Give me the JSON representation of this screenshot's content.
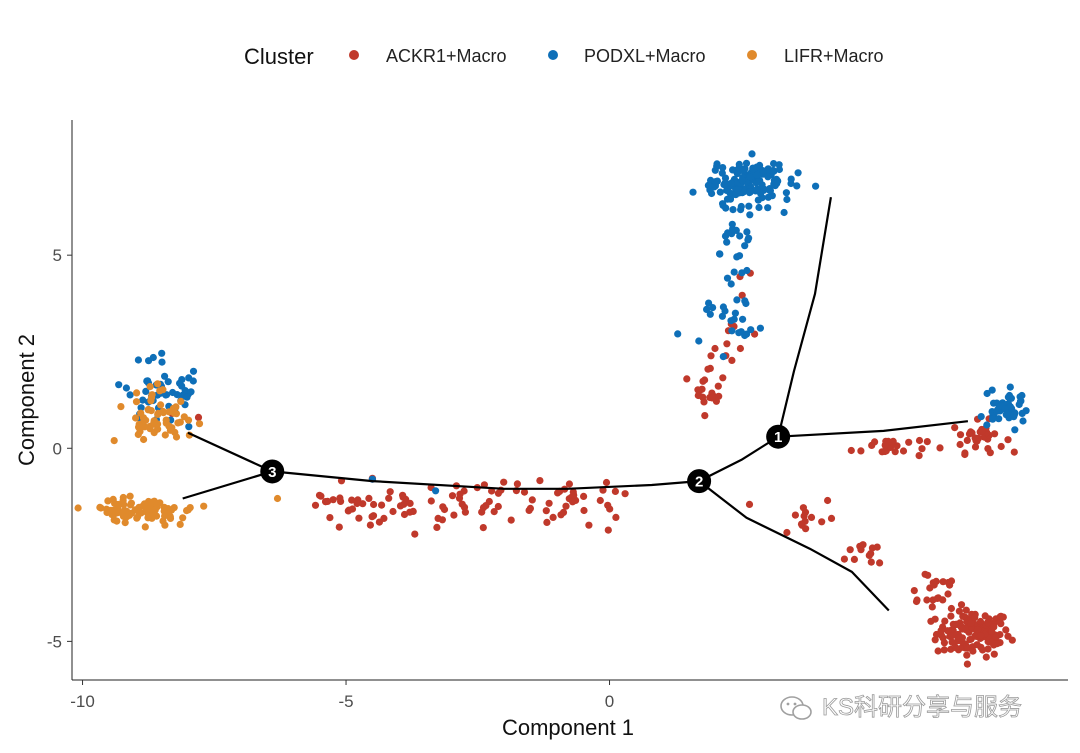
{
  "chart_data": {
    "type": "scatter",
    "title": "",
    "xlabel": "Component 1",
    "ylabel": "Component 2",
    "xlim": [
      -10.2,
      8.7
    ],
    "ylim": [
      -6.0,
      8.5
    ],
    "xticks": [
      -10,
      -5,
      0
    ],
    "yticks": [
      -5,
      0,
      5
    ],
    "legend": {
      "title": "Cluster",
      "placement": "top",
      "entries": [
        {
          "name": "ACKR1+Macro",
          "color": "#C0392B"
        },
        {
          "name": "PODXL+Macro",
          "color": "#0E6FB8"
        },
        {
          "name": "LIFR+Macro",
          "color": "#E08A2C"
        }
      ]
    },
    "series": [
      {
        "name": "ACKR1+Macro",
        "color": "#C0392B",
        "clusters": [
          {
            "cx": 6.9,
            "cy": -4.8,
            "sx": 0.35,
            "sy": 0.3,
            "n": 130
          },
          {
            "cx": 6.1,
            "cy": -3.6,
            "sx": 0.3,
            "sy": 0.3,
            "n": 20
          },
          {
            "cx": 5.0,
            "cy": -2.7,
            "sx": 0.25,
            "sy": 0.2,
            "n": 12
          },
          {
            "cx": 3.7,
            "cy": -1.8,
            "sx": 0.3,
            "sy": 0.3,
            "n": 14
          },
          {
            "cx": 7.0,
            "cy": 0.3,
            "sx": 0.25,
            "sy": 0.2,
            "n": 30
          },
          {
            "cx": 5.3,
            "cy": 0.05,
            "sx": 0.35,
            "sy": 0.15,
            "n": 25
          },
          {
            "cx": 1.9,
            "cy": 1.7,
            "sx": 0.15,
            "sy": 0.4,
            "n": 22
          },
          {
            "cx": 2.4,
            "cy": 2.7,
            "sx": 0.2,
            "sy": 0.3,
            "n": 8
          },
          {
            "cx": 2.6,
            "cy": 4.3,
            "sx": 0.08,
            "sy": 0.1,
            "n": 3
          }
        ],
        "trail": {
          "x0": -5.6,
          "x1": 0.3,
          "y": -1.5,
          "sy": 0.3,
          "n": 110
        },
        "points": [
          [
            -7.8,
            0.8
          ],
          [
            -8.3,
            0.9
          ]
        ]
      },
      {
        "name": "PODXL+Macro",
        "color": "#0E6FB8",
        "clusters": [
          {
            "cx": 2.6,
            "cy": 6.9,
            "sx": 0.4,
            "sy": 0.3,
            "n": 150
          },
          {
            "cx": 2.4,
            "cy": 5.4,
            "sx": 0.15,
            "sy": 0.6,
            "n": 22
          },
          {
            "cx": 2.3,
            "cy": 3.3,
            "sx": 0.25,
            "sy": 0.4,
            "n": 26
          },
          {
            "cx": 7.5,
            "cy": 1.0,
            "sx": 0.2,
            "sy": 0.25,
            "n": 50
          },
          {
            "cx": -8.5,
            "cy": 1.5,
            "sx": 0.45,
            "sy": 0.45,
            "n": 50
          }
        ],
        "trail": null,
        "points": [
          [
            -4.5,
            -0.8
          ],
          [
            -3.3,
            -1.1
          ]
        ]
      },
      {
        "name": "LIFR+Macro",
        "color": "#E08A2C",
        "clusters": [
          {
            "cx": -8.8,
            "cy": -1.6,
            "sx": 0.45,
            "sy": 0.15,
            "n": 85
          },
          {
            "cx": -8.6,
            "cy": 0.6,
            "sx": 0.35,
            "sy": 0.3,
            "n": 50
          },
          {
            "cx": -8.7,
            "cy": 1.3,
            "sx": 0.15,
            "sy": 0.2,
            "n": 8
          }
        ],
        "trail": null,
        "points": [
          [
            -9.4,
            0.2
          ],
          [
            -6.3,
            -1.3
          ],
          [
            -7.7,
            -1.5
          ],
          [
            -8.1,
            -1.8
          ]
        ]
      }
    ],
    "trajectory": {
      "segments": [
        [
          [
            -8.0,
            0.4
          ],
          [
            -6.4,
            -0.6
          ]
        ],
        [
          [
            -8.1,
            -1.3
          ],
          [
            -6.4,
            -0.6
          ]
        ],
        [
          [
            -6.4,
            -0.6
          ],
          [
            -4.5,
            -0.85
          ],
          [
            -2.0,
            -1.05
          ],
          [
            -0.8,
            -1.05
          ],
          [
            0.8,
            -0.95
          ],
          [
            1.7,
            -0.85
          ]
        ],
        [
          [
            1.7,
            -0.85
          ],
          [
            2.5,
            -0.3
          ],
          [
            3.2,
            0.3
          ]
        ],
        [
          [
            3.2,
            0.3
          ],
          [
            3.5,
            2.0
          ],
          [
            3.9,
            4.0
          ],
          [
            4.2,
            6.5
          ]
        ],
        [
          [
            3.2,
            0.3
          ],
          [
            5.2,
            0.45
          ],
          [
            6.8,
            0.7
          ]
        ],
        [
          [
            1.7,
            -0.85
          ],
          [
            2.6,
            -1.8
          ],
          [
            3.8,
            -2.6
          ],
          [
            4.6,
            -3.2
          ],
          [
            5.3,
            -4.2
          ]
        ]
      ],
      "nodes": [
        {
          "label": "1",
          "x": 3.2,
          "y": 0.3
        },
        {
          "label": "2",
          "x": 1.7,
          "y": -0.85
        },
        {
          "label": "3",
          "x": -6.4,
          "y": -0.6
        }
      ]
    }
  },
  "watermark": {
    "text": "KS科研分享与服务",
    "icon": "wechat-icon"
  }
}
